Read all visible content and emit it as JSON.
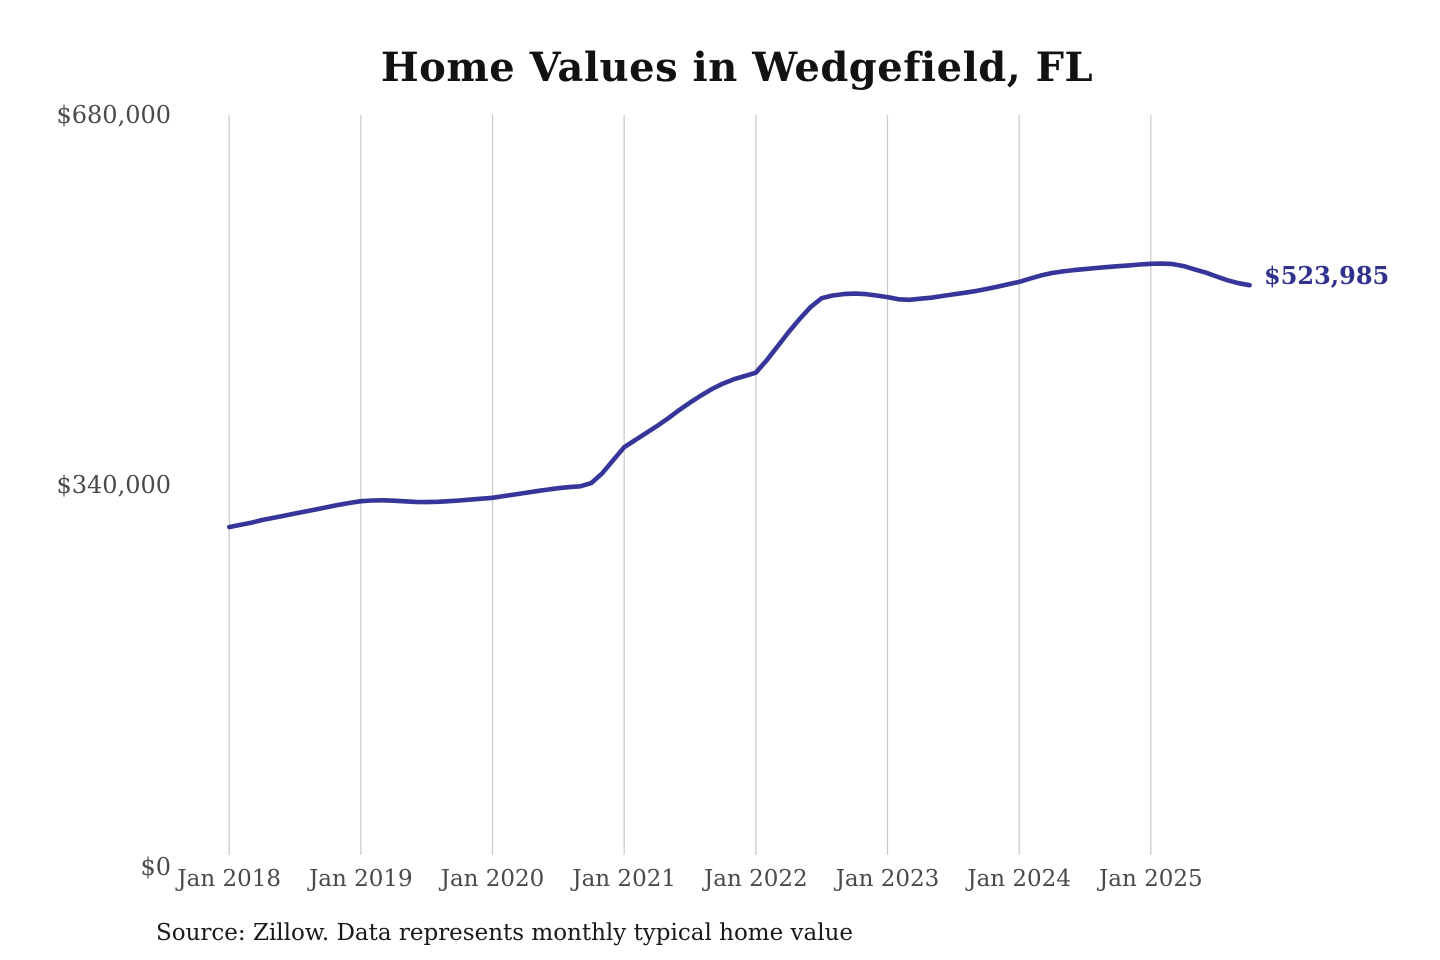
{
  "title": "Home Values in Wedgefield, FL",
  "source_note": "Source: Zillow. Data represents monthly typical home value",
  "latest_value_label": "$523,985",
  "colors": {
    "line": "#36369a",
    "latest_label": "#31318e",
    "gridline": "#c9c9c9",
    "axis_text": "#4a4a4a",
    "title_text": "#121212",
    "source_text": "#191919",
    "background": "#ffffff"
  },
  "chart_data": {
    "type": "line",
    "title": "Home Values in Wedgefield, FL",
    "xlabel": "",
    "ylabel": "",
    "grid": "vertical-only",
    "legend": "none",
    "ylim": [
      0,
      680000
    ],
    "y_ticks": [
      {
        "label": "$0",
        "value": 0
      },
      {
        "label": "$340,000",
        "value": 340000
      },
      {
        "label": "$680,000",
        "value": 680000
      }
    ],
    "x_tick_labels": [
      "Jan 2018",
      "Jan 2019",
      "Jan 2020",
      "Jan 2021",
      "Jan 2022",
      "Jan 2023",
      "Jan 2024",
      "Jan 2025"
    ],
    "frequency": "monthly",
    "start_month": "2018-01",
    "end_month": "2025-10",
    "latest_value": 523985,
    "latest_value_label": "$523,985",
    "values": [
      301500,
      303500,
      305500,
      308000,
      310000,
      312000,
      314000,
      316000,
      318000,
      320000,
      322000,
      323800,
      325300,
      326000,
      326200,
      325800,
      325200,
      324700,
      324500,
      324800,
      325300,
      326000,
      326800,
      327600,
      328500,
      330000,
      331500,
      333000,
      334500,
      336000,
      337300,
      338300,
      339000,
      342000,
      351000,
      363000,
      375000,
      381500,
      388000,
      394500,
      401500,
      409000,
      416000,
      422500,
      428500,
      433500,
      437500,
      440500,
      443500,
      455000,
      468000,
      481000,
      493000,
      504000,
      512000,
      514500,
      515800,
      516200,
      515800,
      514500,
      513000,
      511000,
      510500,
      511500,
      512500,
      514000,
      515500,
      517000,
      518500,
      520500,
      522500,
      524800,
      527000,
      530000,
      533000,
      535200,
      536600,
      537800,
      538800,
      539800,
      540600,
      541400,
      542200,
      543000,
      543600,
      543800,
      543400,
      541500,
      538500,
      535500,
      532000,
      528500,
      525800,
      523985
    ]
  }
}
